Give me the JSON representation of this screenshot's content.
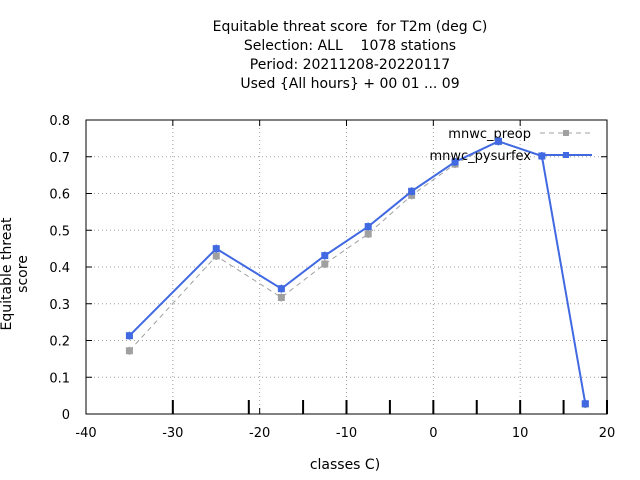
{
  "chart_data": {
    "type": "line",
    "title_lines": [
      "Equitable threat score  for T2m (deg C)",
      "Selection: ALL    1078 stations",
      "Period: 20211208-20220117",
      "Used {All hours} + 00 01 ... 09"
    ],
    "xlabel": "classes C)",
    "ylabel": "Equitable threat score",
    "xlim": [
      -40,
      20
    ],
    "ylim": [
      0,
      0.8
    ],
    "xticks": [
      "-40",
      "-30",
      "-20",
      "-10",
      "0",
      "10",
      "20"
    ],
    "yticks": [
      "0",
      "0.1",
      "0.2",
      "0.3",
      "0.4",
      "0.5",
      "0.6",
      "0.7",
      "0.8"
    ],
    "grid": true,
    "legend_position": "top-right",
    "series": [
      {
        "name": "mnwc_preop",
        "color": "#a0a0a0",
        "dash": true,
        "x": [
          -35,
          -25,
          -17.5,
          -12.5,
          -7.5,
          -2.5,
          2.5,
          7.5,
          12.5,
          17.5
        ],
        "y": [
          0.172,
          0.43,
          0.317,
          0.408,
          0.49,
          0.595,
          0.68,
          0.742,
          0.702,
          0.027
        ]
      },
      {
        "name": "mnwc_pysurfex",
        "color": "#4169e1",
        "dash": false,
        "x": [
          -35,
          -25,
          -17.5,
          -12.5,
          -7.5,
          -2.5,
          2.5,
          7.5,
          12.5,
          17.5
        ],
        "y": [
          0.213,
          0.45,
          0.341,
          0.431,
          0.51,
          0.606,
          0.686,
          0.742,
          0.702,
          0.028
        ]
      }
    ]
  }
}
